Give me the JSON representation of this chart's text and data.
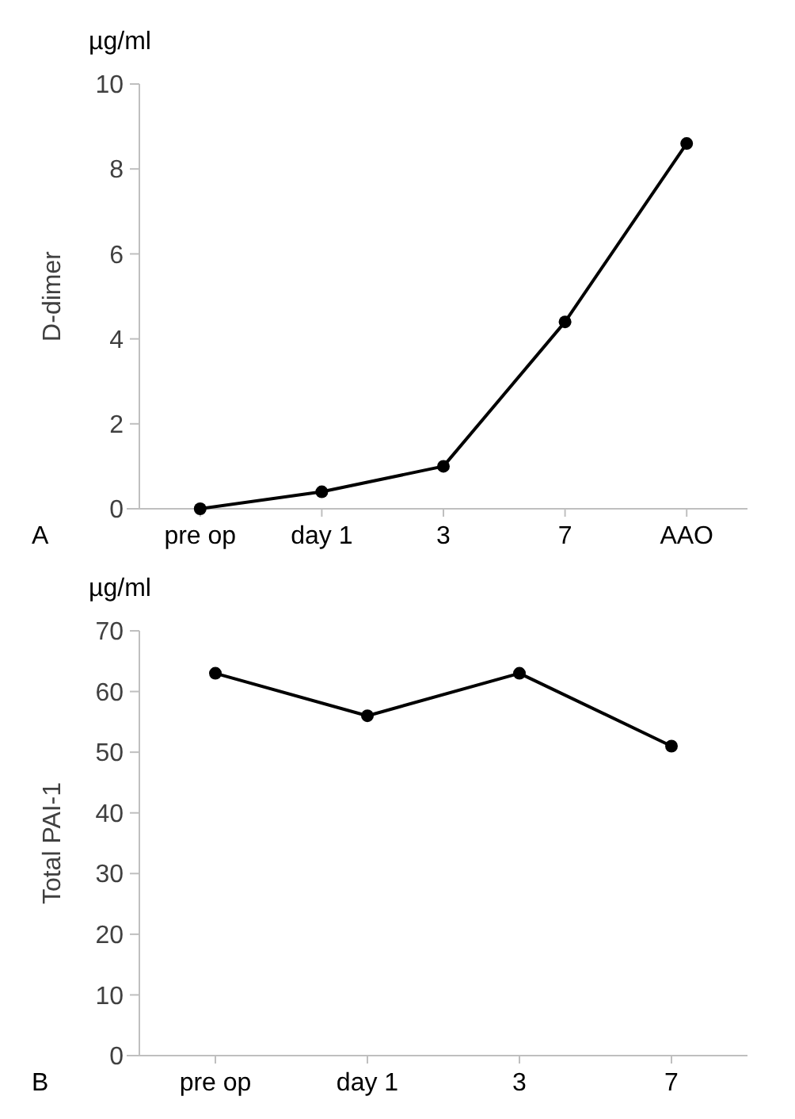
{
  "chart_data": [
    {
      "type": "line",
      "ylabel": "D-dimer",
      "annotations": [
        "µg/ml",
        "A"
      ],
      "categories": [
        "pre op",
        "day 1",
        "3",
        "7",
        "AAO"
      ],
      "series": [
        {
          "color": "#000000",
          "values": [
            0,
            0.4,
            1.0,
            4.4,
            8.6
          ]
        }
      ],
      "ylim": [
        0,
        10
      ],
      "yticks": [
        0,
        2,
        4,
        6,
        8,
        10
      ],
      "grid": false,
      "marker": "circle",
      "line_style": "solid"
    },
    {
      "type": "line",
      "ylabel": "Total PAI-1",
      "annotations": [
        "µg/ml",
        "B"
      ],
      "categories": [
        "pre op",
        "day 1",
        "3",
        "7"
      ],
      "series": [
        {
          "color": "#000000",
          "values": [
            63,
            56,
            63,
            51
          ]
        }
      ],
      "ylim": [
        0,
        70
      ],
      "yticks": [
        0,
        10,
        20,
        30,
        40,
        50,
        60,
        70
      ],
      "grid": false,
      "marker": "circle",
      "line_style": "solid"
    }
  ]
}
